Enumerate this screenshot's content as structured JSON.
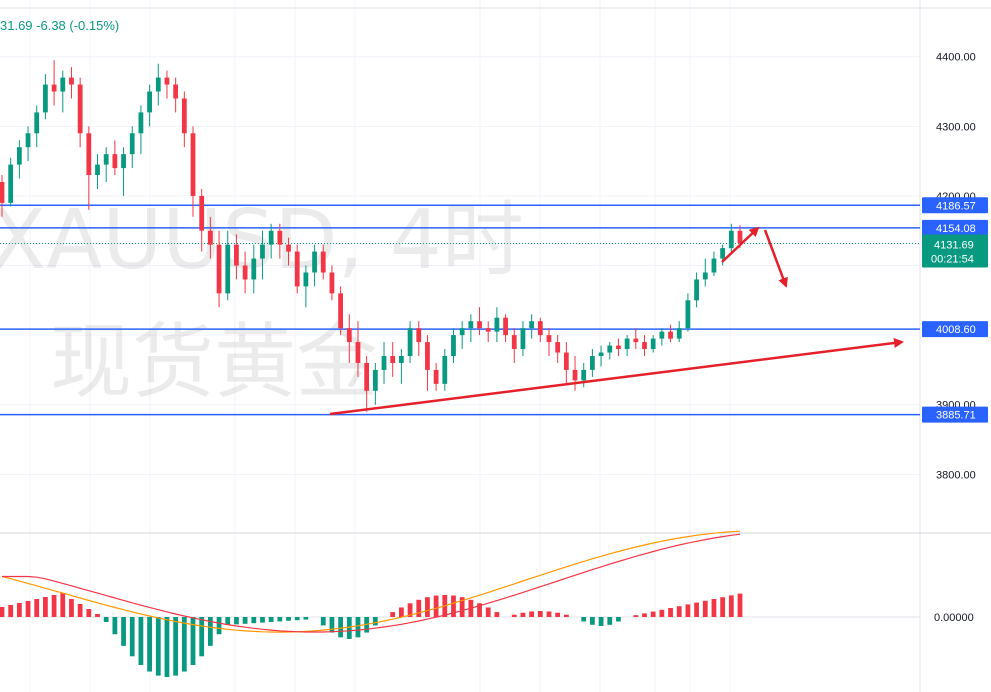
{
  "header": {
    "ohlc_text": "31.69  -6.38 (-0.15%)"
  },
  "watermark": {
    "line1": "XAUUSD, 4时",
    "line2": "现货黄金"
  },
  "colors": {
    "up": "#089981",
    "down": "#f23645",
    "level": "#2962ff",
    "arrow": "#e5202a",
    "macd": "#ff9800",
    "signal": "#f23645"
  },
  "chart_data": {
    "type": "candlestick",
    "symbol": "XAUUSD",
    "timeframe": "4时",
    "price_axis": {
      "ticks": [
        "4400.00",
        "4300.00",
        "4200.00",
        "3900.00",
        "3800.00"
      ],
      "range": [
        3720,
        4470
      ]
    },
    "levels": [
      {
        "label": "4186.57",
        "price": 4186.57
      },
      {
        "label": "4154.08",
        "price": 4154.08
      },
      {
        "label": "4008.60",
        "price": 4008.6
      },
      {
        "label": "3885.71",
        "price": 3885.71
      }
    ],
    "last_price": {
      "label": "4131.69",
      "price": 4131.69,
      "countdown": "00:21:54"
    },
    "indicator": {
      "type": "MACD",
      "zero_label": "0.00000"
    },
    "candles": [
      [
        4220,
        4230,
        4170,
        4190
      ],
      [
        4190,
        4255,
        4185,
        4245
      ],
      [
        4245,
        4280,
        4225,
        4270
      ],
      [
        4270,
        4300,
        4250,
        4290
      ],
      [
        4290,
        4330,
        4270,
        4320
      ],
      [
        4320,
        4375,
        4310,
        4360
      ],
      [
        4360,
        4395,
        4330,
        4350
      ],
      [
        4350,
        4380,
        4320,
        4370
      ],
      [
        4370,
        4385,
        4340,
        4360
      ],
      [
        4360,
        4370,
        4270,
        4290
      ],
      [
        4290,
        4300,
        4180,
        4230
      ],
      [
        4230,
        4260,
        4210,
        4245
      ],
      [
        4245,
        4270,
        4220,
        4260
      ],
      [
        4260,
        4280,
        4230,
        4240
      ],
      [
        4240,
        4270,
        4200,
        4260
      ],
      [
        4260,
        4300,
        4240,
        4290
      ],
      [
        4290,
        4330,
        4260,
        4320
      ],
      [
        4320,
        4360,
        4300,
        4350
      ],
      [
        4350,
        4390,
        4330,
        4370
      ],
      [
        4370,
        4380,
        4340,
        4360
      ],
      [
        4360,
        4370,
        4320,
        4340
      ],
      [
        4340,
        4350,
        4270,
        4290
      ],
      [
        4290,
        4300,
        4170,
        4200
      ],
      [
        4200,
        4210,
        4120,
        4150
      ],
      [
        4150,
        4170,
        4110,
        4130
      ],
      [
        4130,
        4150,
        4040,
        4060
      ],
      [
        4060,
        4150,
        4050,
        4130
      ],
      [
        4130,
        4145,
        4080,
        4100
      ],
      [
        4100,
        4120,
        4060,
        4080
      ],
      [
        4080,
        4130,
        4060,
        4110
      ],
      [
        4110,
        4150,
        4080,
        4130
      ],
      [
        4130,
        4160,
        4110,
        4150
      ],
      [
        4150,
        4160,
        4110,
        4130
      ],
      [
        4130,
        4140,
        4100,
        4120
      ],
      [
        4120,
        4130,
        4060,
        4070
      ],
      [
        4070,
        4100,
        4040,
        4090
      ],
      [
        4090,
        4130,
        4070,
        4120
      ],
      [
        4120,
        4130,
        4080,
        4090
      ],
      [
        4090,
        4100,
        4050,
        4060
      ],
      [
        4060,
        4070,
        4000,
        4010
      ],
      [
        4010,
        4030,
        3960,
        3990
      ],
      [
        3990,
        4020,
        3940,
        3960
      ],
      [
        3960,
        3970,
        3890,
        3920
      ],
      [
        3920,
        3960,
        3900,
        3950
      ],
      [
        3950,
        3990,
        3930,
        3970
      ],
      [
        3970,
        3990,
        3940,
        3960
      ],
      [
        3960,
        3980,
        3930,
        3970
      ],
      [
        3970,
        4020,
        3960,
        4010
      ],
      [
        4010,
        4020,
        3970,
        3990
      ],
      [
        3990,
        4000,
        3920,
        3950
      ],
      [
        3950,
        3960,
        3920,
        3930
      ],
      [
        3930,
        3980,
        3920,
        3970
      ],
      [
        3970,
        4010,
        3960,
        4000
      ],
      [
        4000,
        4020,
        3980,
        4010
      ],
      [
        4010,
        4030,
        3990,
        4020
      ],
      [
        4020,
        4040,
        4000,
        4010
      ],
      [
        4010,
        4020,
        3990,
        4005
      ],
      [
        4005,
        4040,
        3990,
        4025
      ],
      [
        4025,
        4030,
        3990,
        4000
      ],
      [
        4000,
        4010,
        3960,
        3980
      ],
      [
        3980,
        4020,
        3970,
        4010
      ],
      [
        4010,
        4030,
        3995,
        4020
      ],
      [
        4020,
        4025,
        3990,
        4000
      ],
      [
        4000,
        4010,
        3970,
        3990
      ],
      [
        3990,
        4000,
        3960,
        3975
      ],
      [
        3975,
        3990,
        3930,
        3950
      ],
      [
        3950,
        3970,
        3920,
        3935
      ],
      [
        3935,
        3960,
        3925,
        3950
      ],
      [
        3950,
        3980,
        3940,
        3970
      ],
      [
        3970,
        3985,
        3955,
        3975
      ],
      [
        3975,
        3990,
        3965,
        3985
      ],
      [
        3985,
        3995,
        3970,
        3980
      ],
      [
        3980,
        4000,
        3970,
        3995
      ],
      [
        3995,
        4010,
        3980,
        3990
      ],
      [
        3990,
        4000,
        3970,
        3980
      ],
      [
        3980,
        4000,
        3975,
        3995
      ],
      [
        3995,
        4010,
        3985,
        4005
      ],
      [
        4005,
        4015,
        3990,
        3995
      ],
      [
        3995,
        4020,
        3990,
        4010
      ],
      [
        4010,
        4060,
        4005,
        4050
      ],
      [
        4050,
        4090,
        4040,
        4080
      ],
      [
        4080,
        4110,
        4070,
        4090
      ],
      [
        4090,
        4120,
        4085,
        4110
      ],
      [
        4110,
        4130,
        4100,
        4125
      ],
      [
        4125,
        4160,
        4120,
        4150
      ],
      [
        4150,
        4158,
        4125,
        4132
      ]
    ]
  }
}
